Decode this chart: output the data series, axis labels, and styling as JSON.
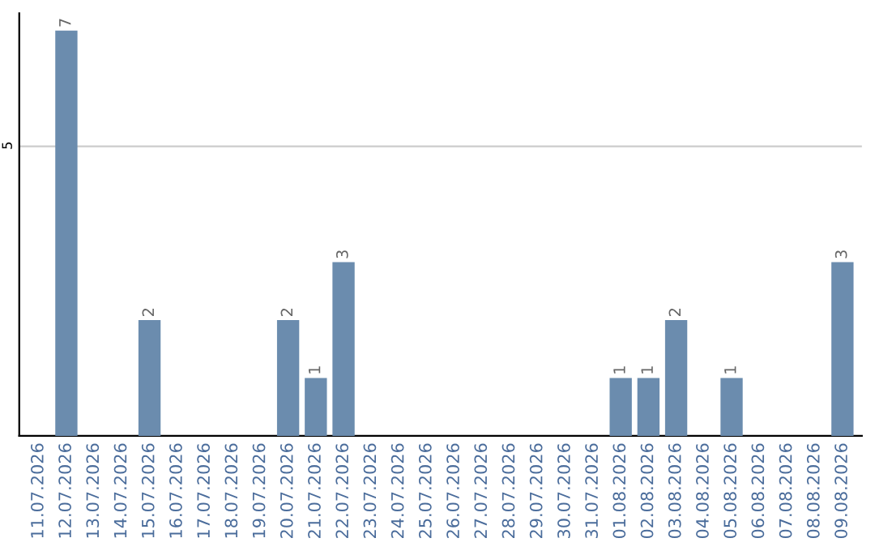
{
  "chart_data": {
    "type": "bar",
    "categories": [
      "11.07.2026",
      "12.07.2026",
      "13.07.2026",
      "14.07.2026",
      "15.07.2026",
      "16.07.2026",
      "17.07.2026",
      "18.07.2026",
      "19.07.2026",
      "20.07.2026",
      "21.07.2026",
      "22.07.2026",
      "23.07.2026",
      "24.07.2026",
      "25.07.2026",
      "26.07.2026",
      "27.07.2026",
      "28.07.2026",
      "29.07.2026",
      "30.07.2026",
      "31.07.2026",
      "01.08.2026",
      "02.08.2026",
      "03.08.2026",
      "04.08.2026",
      "05.08.2026",
      "06.08.2026",
      "07.08.2026",
      "08.08.2026",
      "09.08.2026"
    ],
    "values": [
      0,
      7,
      0,
      0,
      2,
      0,
      0,
      0,
      0,
      2,
      1,
      3,
      0,
      0,
      0,
      0,
      0,
      0,
      0,
      0,
      0,
      1,
      1,
      2,
      0,
      1,
      0,
      0,
      0,
      3
    ],
    "value_labels": [
      null,
      "7",
      null,
      null,
      "2",
      null,
      null,
      null,
      null,
      "2",
      "1",
      "3",
      null,
      null,
      null,
      null,
      null,
      null,
      null,
      null,
      null,
      "1",
      "1",
      "2",
      null,
      "1",
      null,
      null,
      null,
      "3"
    ],
    "color": "#6b8cae",
    "ylim": [
      0,
      7.3
    ],
    "yticks": [
      5
    ],
    "grid": "y"
  }
}
